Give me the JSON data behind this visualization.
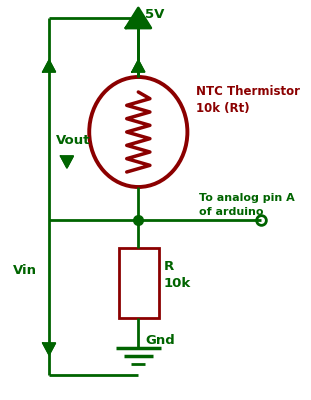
{
  "bg_color": "#ffffff",
  "dark_green": "#006400",
  "dark_red": "#8B0000",
  "wire_lw": 2.0,
  "component_lw": 2.0,
  "fig_w": 3.11,
  "fig_h": 4.0,
  "label_5v": "5V",
  "label_vout": "Vout",
  "label_vin": "Vin",
  "label_gnd": "Gnd",
  "label_ntc": "NTC Thermistor\n10k (Rt)",
  "label_r": "R\n10k",
  "label_arduino": "To analog pin A\nof arduino"
}
